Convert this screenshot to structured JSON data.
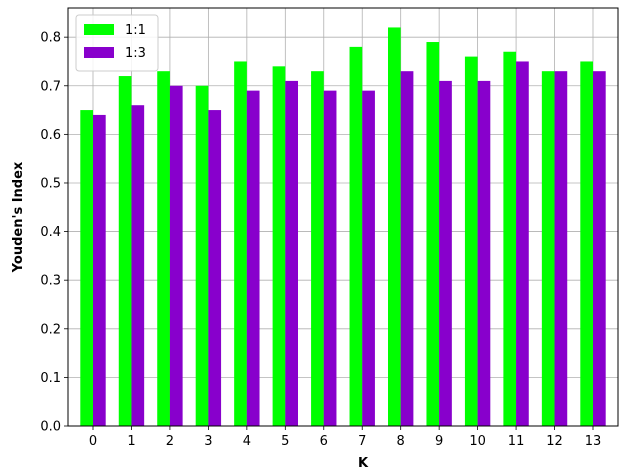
{
  "chart_data": {
    "type": "bar",
    "title": "",
    "xlabel": "K",
    "ylabel": "Youden's Index",
    "categories": [
      "0",
      "1",
      "2",
      "3",
      "4",
      "5",
      "6",
      "7",
      "8",
      "9",
      "10",
      "11",
      "12",
      "13"
    ],
    "series": [
      {
        "name": "1:1",
        "color": "#00ff00",
        "values": [
          0.65,
          0.72,
          0.73,
          0.7,
          0.75,
          0.74,
          0.73,
          0.78,
          0.82,
          0.79,
          0.76,
          0.77,
          0.73,
          0.75
        ]
      },
      {
        "name": "1:3",
        "color": "#8800cc",
        "values": [
          0.64,
          0.66,
          0.7,
          0.65,
          0.69,
          0.71,
          0.69,
          0.69,
          0.73,
          0.71,
          0.71,
          0.75,
          0.73,
          0.73
        ]
      }
    ],
    "ylim": [
      0,
      0.86
    ],
    "yticks": [
      "0.0",
      "0.1",
      "0.2",
      "0.3",
      "0.4",
      "0.5",
      "0.6",
      "0.7",
      "0.8"
    ],
    "grid": true,
    "legend_position": "top-left"
  }
}
